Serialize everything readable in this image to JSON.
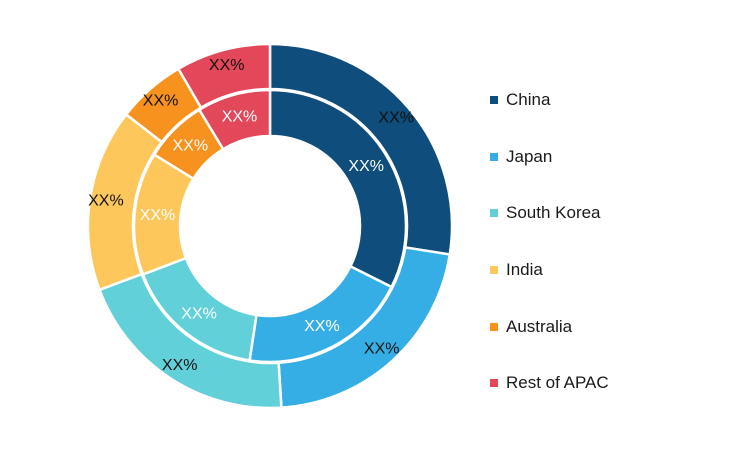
{
  "chart_data": {
    "type": "pie",
    "variant": "nested-donut",
    "categories": [
      "China",
      "Japan",
      "South Korea",
      "India",
      "Australia",
      "Rest of APAC"
    ],
    "colors": [
      "#0e4d7c",
      "#34aee4",
      "#62d0d9",
      "#fdc75c",
      "#f7921e",
      "#e2475a"
    ],
    "series": [
      {
        "ring": "outer",
        "values": [
          27.5,
          21.5,
          20.3,
          16.2,
          6.1,
          8.4
        ],
        "labels": [
          "XX%",
          "XX%",
          "XX%",
          "XX%",
          "XX%",
          "XX%"
        ]
      },
      {
        "ring": "inner",
        "values": [
          32.4,
          20.0,
          16.8,
          14.6,
          7.5,
          8.7
        ],
        "labels": [
          "XX%",
          "XX%",
          "XX%",
          "XX%",
          "XX%",
          "XX%"
        ]
      }
    ],
    "legend_position": "right"
  }
}
